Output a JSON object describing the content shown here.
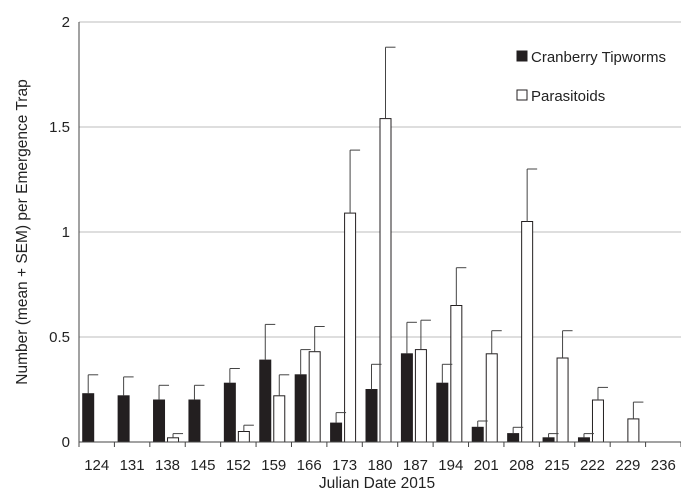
{
  "chart_data": {
    "type": "bar",
    "xlabel": "Julian Date 2015",
    "ylabel": "Number (mean + SEM) per Emergence Trap",
    "ylim": [
      0,
      2
    ],
    "yticks": [
      0,
      0.5,
      1,
      1.5,
      2
    ],
    "ytick_labels": [
      "0",
      "0.5",
      "1",
      "1.5",
      "2"
    ],
    "grid": "horizontal",
    "legend_position": "top-right",
    "categories": [
      "124",
      "131",
      "138",
      "145",
      "152",
      "159",
      "166",
      "173",
      "180",
      "187",
      "194",
      "201",
      "208",
      "215",
      "222",
      "229",
      "236"
    ],
    "series": [
      {
        "name": "Cranberry Tipworms",
        "color": "#231f20",
        "values": [
          0.23,
          0.22,
          0.2,
          0.2,
          0.28,
          0.39,
          0.32,
          0.09,
          0.25,
          0.42,
          0.28,
          0.07,
          0.04,
          0.02,
          0.02,
          0,
          0
        ],
        "errors": [
          0.09,
          0.09,
          0.07,
          0.07,
          0.07,
          0.17,
          0.12,
          0.05,
          0.12,
          0.15,
          0.09,
          0.03,
          0.03,
          0.02,
          0.02,
          0,
          0
        ]
      },
      {
        "name": "Parasitoids",
        "color": "#ffffff",
        "values": [
          0,
          0,
          0.02,
          0,
          0.05,
          0.22,
          0.43,
          1.09,
          1.54,
          0.44,
          0.65,
          0.42,
          1.05,
          0.4,
          0.2,
          0.11,
          0
        ],
        "errors": [
          0,
          0,
          0.02,
          0,
          0.03,
          0.1,
          0.12,
          0.3,
          0.34,
          0.14,
          0.18,
          0.11,
          0.25,
          0.13,
          0.06,
          0.08,
          0
        ]
      }
    ]
  }
}
